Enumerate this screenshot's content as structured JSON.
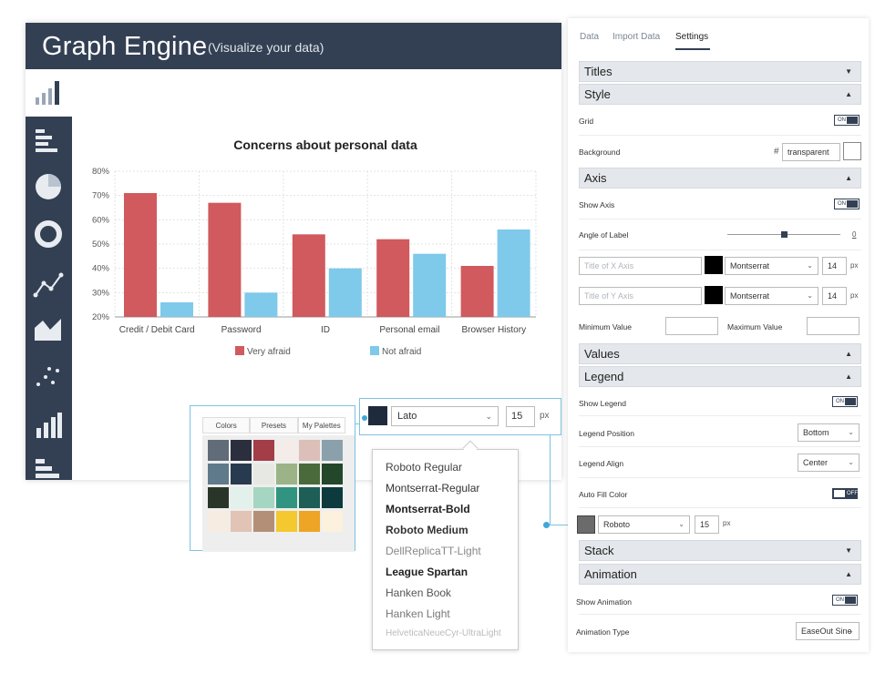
{
  "app": {
    "title": "Graph Engine",
    "subtitle": "(Visualize your data)"
  },
  "rail": [
    "horizontal-bar-chart-icon",
    "pie-chart-icon",
    "donut-chart-icon",
    "line-chart-icon",
    "area-chart-icon",
    "scatter-chart-icon",
    "bar-chart-icon",
    "stacked-bar-icon"
  ],
  "chart_data": {
    "type": "bar",
    "title": "Concerns about personal data",
    "categories": [
      "Credit / Debit Card",
      "Password",
      "ID",
      "Personal email",
      "Browser History"
    ],
    "series": [
      {
        "name": "Very afraid",
        "values": [
          71,
          67,
          54,
          52,
          41
        ],
        "color": "#d05a5d"
      },
      {
        "name": "Not afraid",
        "values": [
          26,
          30,
          40,
          46,
          56
        ],
        "color": "#7fc9ea"
      }
    ],
    "ylim": [
      20,
      80
    ],
    "yticks": [
      "20%",
      "30%",
      "40%",
      "50%",
      "60%",
      "70%",
      "80%"
    ],
    "xlabel": "",
    "ylabel": "",
    "grid": true,
    "legend": "bottom"
  },
  "palette": {
    "tabs": [
      "Colors",
      "Presets",
      "My Palettes"
    ],
    "rows": [
      [
        "#616c78",
        "#2b2f3d",
        "#a33d48",
        "#f3ece8",
        "#dcbfb8",
        "#8aa1ac"
      ],
      [
        "#5f7a8a",
        "#283a4f",
        "#e7e8e3",
        "#9bb386",
        "#4a6a3b",
        "#23472a"
      ],
      [
        "#2a3529",
        "#e3f1ec",
        "#a4d6c1",
        "#319480",
        "#1d5e56",
        "#0c3a3d"
      ],
      [
        "#f6ece2",
        "#e1c4b5",
        "#b38f78",
        "#f4c82f",
        "#eea424",
        "#fbf1dc"
      ]
    ]
  },
  "fontpicker": {
    "font": "Lato",
    "size": "15",
    "unit": "px",
    "swatch": "#1f2b3d"
  },
  "fontlist": [
    {
      "name": "Roboto Regular",
      "weight": "400",
      "color": "#444"
    },
    {
      "name": "Montserrat-Regular",
      "weight": "400",
      "color": "#333"
    },
    {
      "name": "Montserrat-Bold",
      "weight": "700",
      "color": "#222"
    },
    {
      "name": "Roboto Medium",
      "weight": "600",
      "color": "#333"
    },
    {
      "name": "DellReplicaTT-Light",
      "weight": "300",
      "color": "#888"
    },
    {
      "name": "League Spartan",
      "weight": "700",
      "color": "#222"
    },
    {
      "name": "Hanken Book",
      "weight": "400",
      "color": "#555"
    },
    {
      "name": "Hanken Light",
      "weight": "300",
      "color": "#777"
    },
    {
      "name": "HelveticaNeueCyr-UltraLight",
      "weight": "300",
      "color": "#bbb"
    }
  ],
  "panel": {
    "tabs": [
      "Data",
      "Import Data",
      "Settings"
    ],
    "sections": {
      "titles": "Titles",
      "style": "Style",
      "axis": "Axis",
      "values": "Values",
      "legend": "Legend",
      "stack": "Stack",
      "animation": "Animation"
    },
    "labels": {
      "grid": "Grid",
      "background": "Background",
      "show_axis": "Show Axis",
      "angle": "Angle of Label",
      "min": "Minimum Value",
      "max": "Maximum Value",
      "show_legend": "Show Legend",
      "legend_position": "Legend Position",
      "legend_align": "Legend Align",
      "auto_fill": "Auto Fill Color",
      "show_animation": "Show Animation",
      "animation_type": "Animation Type"
    },
    "toggle_on": "ON",
    "toggle_off": "OFF",
    "hash": "#",
    "background_value": "transparent",
    "angle_value": "0",
    "x_axis_placeholder": "Title of X Axis",
    "y_axis_placeholder": "Title of Y Axis",
    "axis_font": "Montserrat",
    "axis_size": "14",
    "unit": "px",
    "legend_position_value": "Bottom",
    "legend_align_value": "Center",
    "autofill_font": "Roboto",
    "autofill_size": "15",
    "animation_type_value": "EaseOut Sine"
  }
}
